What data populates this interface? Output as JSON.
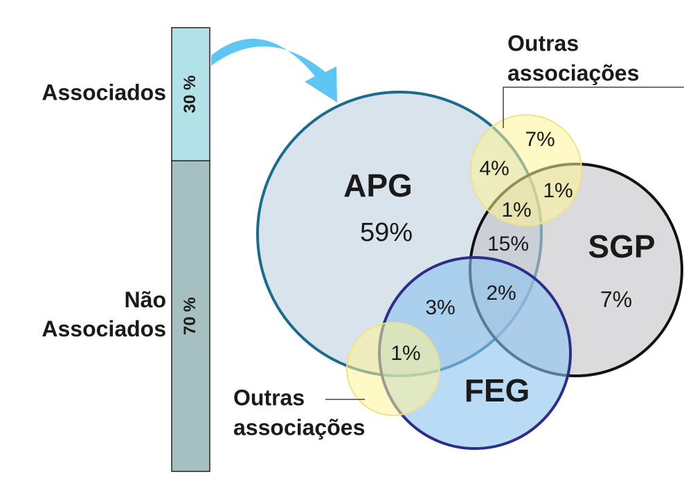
{
  "bar": {
    "segments": [
      {
        "label_lines": [
          "Associados"
        ],
        "value": 30,
        "value_label": "30 %"
      },
      {
        "label_lines": [
          "Não",
          "Associados"
        ],
        "value": 70,
        "value_label": "70 %"
      }
    ]
  },
  "venn": {
    "sets": [
      {
        "name": "APG",
        "share": "59%"
      },
      {
        "name": "SGP",
        "share": "7%"
      },
      {
        "name": "FEG"
      }
    ],
    "regions": [
      "7%",
      "4%",
      "1%",
      "1%",
      "15%",
      "2%",
      "3%",
      "1%"
    ],
    "others_labels": [
      {
        "lines": [
          "Outras",
          "associações"
        ]
      },
      {
        "lines": [
          "Outras",
          "associações"
        ]
      }
    ]
  }
}
